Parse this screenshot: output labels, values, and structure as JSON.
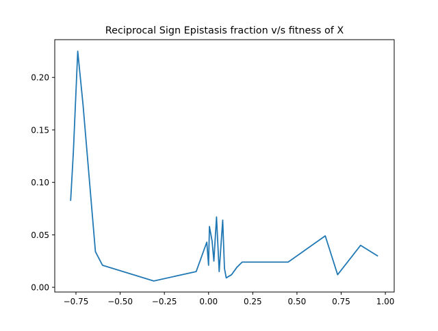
{
  "chart_data": {
    "type": "line",
    "title": "Reciprocal Sign Epistasis fraction v/s fitness of X",
    "xlabel": "",
    "ylabel": "",
    "xlim": [
      -0.87,
      1.05
    ],
    "ylim": [
      -0.0045,
      0.236
    ],
    "xticks": [
      -0.75,
      -0.5,
      -0.25,
      0.0,
      0.25,
      0.5,
      0.75,
      1.0
    ],
    "xtick_labels": [
      "−0.75",
      "−0.50",
      "−0.25",
      "0.00",
      "0.25",
      "0.50",
      "0.75",
      "1.00"
    ],
    "yticks": [
      0.0,
      0.05,
      0.1,
      0.15,
      0.2
    ],
    "ytick_labels": [
      "0.00",
      "0.05",
      "0.10",
      "0.15",
      "0.20"
    ],
    "grid": false,
    "color": "#1f77b4",
    "series": [
      {
        "name": "",
        "x": [
          -0.78,
          -0.765,
          -0.74,
          -0.71,
          -0.64,
          -0.6,
          -0.31,
          -0.07,
          -0.01,
          0.0,
          0.005,
          0.02,
          0.03,
          0.045,
          0.06,
          0.08,
          0.09,
          0.1,
          0.13,
          0.16,
          0.19,
          0.45,
          0.66,
          0.73,
          0.86,
          0.955
        ],
        "y": [
          0.083,
          0.128,
          0.225,
          0.174,
          0.034,
          0.021,
          0.006,
          0.015,
          0.043,
          0.021,
          0.058,
          0.044,
          0.025,
          0.067,
          0.015,
          0.064,
          0.018,
          0.009,
          0.012,
          0.019,
          0.024,
          0.024,
          0.049,
          0.012,
          0.04,
          0.03
        ]
      }
    ]
  }
}
